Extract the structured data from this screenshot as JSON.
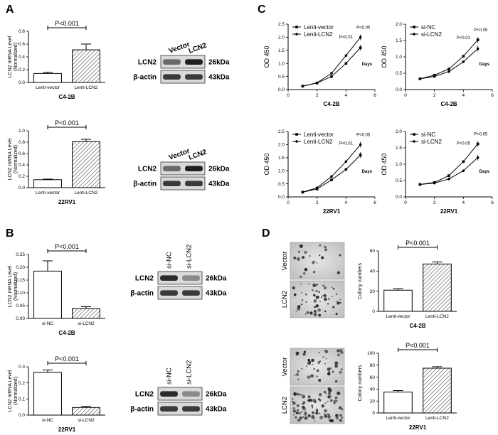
{
  "panels": {
    "A": {
      "label": "A",
      "charts": [
        {
          "cell": "C4-2B",
          "type": "bar",
          "ylabel": "LCN2 mRNA Level (Normalized)",
          "categories": [
            "Lenti-vector",
            "Lenti-LCN2"
          ],
          "values": [
            0.14,
            0.51
          ],
          "errors": [
            0.02,
            0.09
          ],
          "ylim": [
            0,
            0.8
          ],
          "yticks": [
            "0.0",
            "0.2",
            "0.4",
            "0.6",
            "0.8"
          ],
          "pvalue": "P<0.001"
        },
        {
          "cell": "22RV1",
          "type": "bar",
          "ylabel": "LCN2 mRNA Level (Normalized)",
          "categories": [
            "Lenti-vector",
            "Lenti-LCN2"
          ],
          "values": [
            0.14,
            0.81
          ],
          "errors": [
            0.01,
            0.04
          ],
          "ylim": [
            0,
            1.0
          ],
          "yticks": [
            "0.0",
            "0.2",
            "0.4",
            "0.6",
            "0.8",
            "1.0"
          ],
          "pvalue": "P<0.001"
        }
      ],
      "blots": [
        {
          "lanes": [
            "Vector",
            "LCN2"
          ],
          "rows": [
            {
              "name": "LCN2",
              "kda": "26kDa"
            },
            {
              "name": "β-actin",
              "kda": "43kDa"
            }
          ]
        },
        {
          "lanes": [
            "Vector",
            "LCN2"
          ],
          "rows": [
            {
              "name": "LCN2",
              "kda": "26kDa"
            },
            {
              "name": "β-actin",
              "kda": "43kDa"
            }
          ]
        }
      ]
    },
    "B": {
      "label": "B",
      "charts": [
        {
          "cell": "C4-2B",
          "type": "bar",
          "ylabel": "LCN2 mRNA Level (Normalized)",
          "categories": [
            "si-NC",
            "si-LCN2"
          ],
          "values": [
            0.185,
            0.038
          ],
          "errors": [
            0.04,
            0.008
          ],
          "ylim": [
            0,
            0.25
          ],
          "yticks": [
            "0.00",
            "0.05",
            "0.10",
            "0.15",
            "0.20",
            "0.25"
          ],
          "pvalue": "P<0.001"
        },
        {
          "cell": "22RV1",
          "type": "bar",
          "ylabel": "LCN2 mRNA Level (Normalized)",
          "categories": [
            "si-NC",
            "si-LCN2"
          ],
          "values": [
            0.265,
            0.047
          ],
          "errors": [
            0.015,
            0.008
          ],
          "ylim": [
            0,
            0.3
          ],
          "yticks": [
            "0.0",
            "0.1",
            "0.2",
            "0.3"
          ],
          "pvalue": "P<0.001"
        }
      ],
      "blots": [
        {
          "lanes": [
            "si-NC",
            "si-LCN2"
          ],
          "rows": [
            {
              "name": "LCN2",
              "kda": "26kDa"
            },
            {
              "name": "β-actin",
              "kda": "43kDa"
            }
          ]
        },
        {
          "lanes": [
            "si-NC",
            "si-LCN2"
          ],
          "rows": [
            {
              "name": "LCN2",
              "kda": "26kDa"
            },
            {
              "name": "β-actin",
              "kda": "43kDa"
            }
          ]
        }
      ]
    },
    "C": {
      "label": "C",
      "charts": [
        {
          "cell": "C4-2B",
          "type": "line",
          "ylabel": "OD 450",
          "xlabel": "Days",
          "x": [
            1,
            2,
            3,
            4,
            5
          ],
          "xlim": [
            0,
            6
          ],
          "xticks": [
            "0",
            "2",
            "4",
            "6"
          ],
          "ylim": [
            0,
            2.5
          ],
          "yticks": [
            "0.0",
            "0.5",
            "1.0",
            "1.5",
            "2.0",
            "2.5"
          ],
          "series": [
            {
              "name": "Lenti-vector",
              "values": [
                0.13,
                0.25,
                0.5,
                1.0,
                1.6
              ]
            },
            {
              "name": "Lenti-LCN2",
              "values": [
                0.13,
                0.26,
                0.62,
                1.3,
                2.0
              ]
            }
          ],
          "annotations": [
            "P<0.01",
            "P<0.05"
          ]
        },
        {
          "cell": "C4-2B",
          "type": "line",
          "ylabel": "OD 450",
          "xlabel": "Days",
          "x": [
            1,
            2,
            3,
            4,
            5
          ],
          "xlim": [
            0,
            6
          ],
          "xticks": [
            "0",
            "2",
            "4",
            "6"
          ],
          "ylim": [
            0,
            2.0
          ],
          "yticks": [
            "0.0",
            "0.5",
            "1.0",
            "1.5",
            "2.0"
          ],
          "series": [
            {
              "name": "si-NC",
              "values": [
                0.33,
                0.44,
                0.63,
                1.02,
                1.52
              ]
            },
            {
              "name": "si-LCN2",
              "values": [
                0.33,
                0.4,
                0.55,
                0.85,
                1.25
              ]
            }
          ],
          "annotations": [
            "P<0.01",
            "P<0.05"
          ]
        },
        {
          "cell": "22RV1",
          "type": "line",
          "ylabel": "OD 450",
          "xlabel": "Days",
          "x": [
            1,
            2,
            3,
            4,
            5
          ],
          "xlim": [
            0,
            6
          ],
          "xticks": [
            "0",
            "2",
            "4",
            "6"
          ],
          "ylim": [
            0,
            2.5
          ],
          "yticks": [
            "0.0",
            "0.5",
            "1.0",
            "1.5",
            "2.0",
            "2.5"
          ],
          "series": [
            {
              "name": "Lenti-vector",
              "values": [
                0.18,
                0.3,
                0.65,
                1.05,
                1.6
              ]
            },
            {
              "name": "Lenti-LCN2",
              "values": [
                0.18,
                0.35,
                0.78,
                1.35,
                2.0
              ]
            }
          ],
          "annotations": [
            "P<0.01",
            "P<0.05"
          ]
        },
        {
          "cell": "22RV1",
          "type": "line",
          "ylabel": "OD 450",
          "xlabel": "Days",
          "x": [
            1,
            2,
            3,
            4,
            5
          ],
          "xlim": [
            0,
            6
          ],
          "xticks": [
            "0",
            "2",
            "4",
            "6"
          ],
          "ylim": [
            0,
            2.0
          ],
          "yticks": [
            "0.0",
            "0.5",
            "1.0",
            "1.5",
            "2.0"
          ],
          "series": [
            {
              "name": "si-NC",
              "values": [
                0.38,
                0.44,
                0.65,
                1.08,
                1.62
              ]
            },
            {
              "name": "si-LCN2",
              "values": [
                0.38,
                0.42,
                0.55,
                0.8,
                1.2
              ]
            }
          ],
          "annotations": [
            "P<0.05",
            "P<0.05"
          ]
        }
      ]
    },
    "D": {
      "label": "D",
      "images": [
        {
          "cell": "C4-2B",
          "rows": [
            "Vector",
            "LCN2"
          ]
        },
        {
          "cell": "22RV1",
          "rows": [
            "Vector",
            "LCN2"
          ]
        }
      ],
      "charts": [
        {
          "cell": "C4-2B",
          "type": "bar",
          "ylabel": "Colony numbers",
          "categories": [
            "Lenti-vector",
            "Lenti-LCN2"
          ],
          "values": [
            21,
            47
          ],
          "errors": [
            1.5,
            2
          ],
          "ylim": [
            0,
            60
          ],
          "yticks": [
            "0",
            "20",
            "40",
            "60"
          ],
          "pvalue": "P<0.001"
        },
        {
          "cell": "22RV1",
          "type": "bar",
          "ylabel": "Colony numbers",
          "categories": [
            "Lenti-vector",
            "Lenti-LCN2"
          ],
          "values": [
            35,
            75
          ],
          "errors": [
            2.5,
            2.5
          ],
          "ylim": [
            0,
            100
          ],
          "yticks": [
            "0",
            "20",
            "40",
            "60",
            "80",
            "100"
          ],
          "pvalue": "P<0.001"
        }
      ]
    }
  },
  "chart_data": [
    {
      "type": "bar",
      "panel": "A",
      "cell": "C4-2B",
      "ylabel": "LCN2 mRNA Level (Normalized)",
      "categories": [
        "Lenti-vector",
        "Lenti-LCN2"
      ],
      "values": [
        0.14,
        0.51
      ],
      "ylim": [
        0,
        0.8
      ]
    },
    {
      "type": "bar",
      "panel": "A",
      "cell": "22RV1",
      "ylabel": "LCN2 mRNA Level (Normalized)",
      "categories": [
        "Lenti-vector",
        "Lenti-LCN2"
      ],
      "values": [
        0.14,
        0.81
      ],
      "ylim": [
        0,
        1.0
      ]
    },
    {
      "type": "bar",
      "panel": "B",
      "cell": "C4-2B",
      "ylabel": "LCN2 mRNA Level (Normalized)",
      "categories": [
        "si-NC",
        "si-LCN2"
      ],
      "values": [
        0.185,
        0.038
      ],
      "ylim": [
        0,
        0.25
      ]
    },
    {
      "type": "bar",
      "panel": "B",
      "cell": "22RV1",
      "ylabel": "LCN2 mRNA Level (Normalized)",
      "categories": [
        "si-NC",
        "si-LCN2"
      ],
      "values": [
        0.265,
        0.047
      ],
      "ylim": [
        0,
        0.3
      ]
    },
    {
      "type": "line",
      "panel": "C",
      "cell": "C4-2B",
      "x": [
        1,
        2,
        3,
        4,
        5
      ],
      "series": [
        {
          "name": "Lenti-vector",
          "values": [
            0.13,
            0.25,
            0.5,
            1.0,
            1.6
          ]
        },
        {
          "name": "Lenti-LCN2",
          "values": [
            0.13,
            0.26,
            0.62,
            1.3,
            2.0
          ]
        }
      ]
    },
    {
      "type": "line",
      "panel": "C",
      "cell": "C4-2B",
      "x": [
        1,
        2,
        3,
        4,
        5
      ],
      "series": [
        {
          "name": "si-NC",
          "values": [
            0.33,
            0.44,
            0.63,
            1.02,
            1.52
          ]
        },
        {
          "name": "si-LCN2",
          "values": [
            0.33,
            0.4,
            0.55,
            0.85,
            1.25
          ]
        }
      ]
    },
    {
      "type": "line",
      "panel": "C",
      "cell": "22RV1",
      "x": [
        1,
        2,
        3,
        4,
        5
      ],
      "series": [
        {
          "name": "Lenti-vector",
          "values": [
            0.18,
            0.3,
            0.65,
            1.05,
            1.6
          ]
        },
        {
          "name": "Lenti-LCN2",
          "values": [
            0.18,
            0.35,
            0.78,
            1.35,
            2.0
          ]
        }
      ]
    },
    {
      "type": "line",
      "panel": "C",
      "cell": "22RV1",
      "x": [
        1,
        2,
        3,
        4,
        5
      ],
      "series": [
        {
          "name": "si-NC",
          "values": [
            0.38,
            0.44,
            0.65,
            1.08,
            1.62
          ]
        },
        {
          "name": "si-LCN2",
          "values": [
            0.38,
            0.42,
            0.55,
            0.8,
            1.2
          ]
        }
      ]
    },
    {
      "type": "bar",
      "panel": "D",
      "cell": "C4-2B",
      "ylabel": "Colony numbers",
      "categories": [
        "Lenti-vector",
        "Lenti-LCN2"
      ],
      "values": [
        21,
        47
      ],
      "ylim": [
        0,
        60
      ]
    },
    {
      "type": "bar",
      "panel": "D",
      "cell": "22RV1",
      "ylabel": "Colony numbers",
      "categories": [
        "Lenti-vector",
        "Lenti-LCN2"
      ],
      "values": [
        35,
        75
      ],
      "ylim": [
        0,
        100
      ]
    }
  ]
}
